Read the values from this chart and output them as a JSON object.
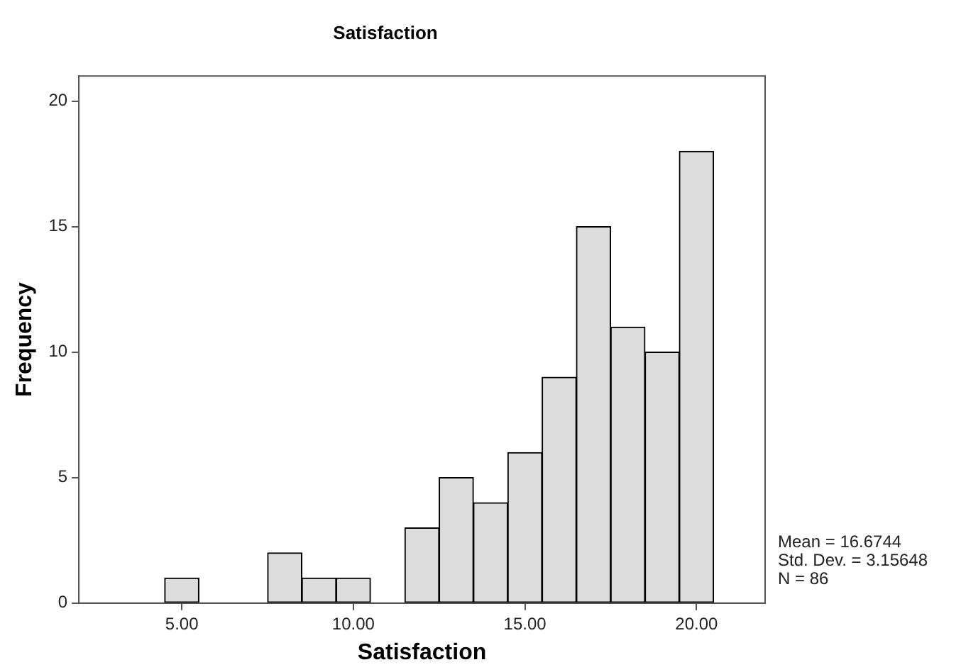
{
  "chart_data": {
    "type": "histogram",
    "title": "Satisfaction",
    "xlabel": "Satisfaction",
    "ylabel": "Frequency",
    "bins": [
      4.5,
      5.5,
      6.5,
      7.5,
      8.5,
      9.5,
      10.5,
      11.5,
      12.5,
      13.5,
      14.5,
      15.5,
      16.5,
      17.5,
      18.5,
      19.5,
      20.5
    ],
    "values": [
      1,
      0,
      0,
      2,
      1,
      1,
      0,
      3,
      5,
      4,
      6,
      9,
      15,
      11,
      10,
      18
    ],
    "color": "#dcdcdc",
    "xlim": [
      2,
      22
    ],
    "xticks": [
      {
        "value": 5,
        "label": "5.00"
      },
      {
        "value": 10,
        "label": "10.00"
      },
      {
        "value": 15,
        "label": "15.00"
      },
      {
        "value": 20,
        "label": "20.00"
      }
    ],
    "ylim": [
      0,
      21
    ],
    "yticks": [
      0,
      5,
      10,
      15,
      20
    ],
    "grid": false,
    "legend": false,
    "annotations": [
      "Mean = 16.6744",
      "Std. Dev. = 3.15648",
      "N = 86"
    ]
  }
}
